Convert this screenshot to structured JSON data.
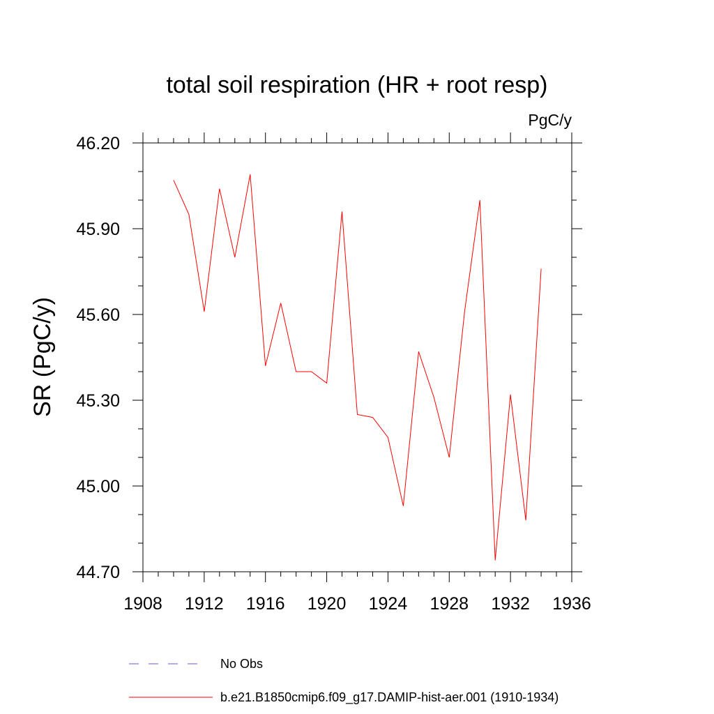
{
  "chart_data": {
    "type": "line",
    "title": "total soil respiration (HR + root resp)",
    "units_label": "PgC/y",
    "ylabel": "SR  (PgC/y)",
    "xlabel": "",
    "xlim": [
      1908,
      1936
    ],
    "ylim": [
      44.7,
      46.2
    ],
    "xticks": [
      "1908",
      "1912",
      "1916",
      "1920",
      "1924",
      "1928",
      "1932",
      "1936"
    ],
    "yticks": [
      "44.70",
      "45.00",
      "45.30",
      "45.60",
      "45.90",
      "46.20"
    ],
    "grid": false,
    "legend_position": "bottom",
    "series": [
      {
        "name": "b.e21.B1850cmip6.f09_g17.DAMIP-hist-aer.001 (1910-1934)",
        "color": "#ff0000",
        "style": "solid",
        "x": [
          1910,
          1911,
          1912,
          1913,
          1914,
          1915,
          1916,
          1917,
          1918,
          1919,
          1920,
          1921,
          1922,
          1923,
          1924,
          1925,
          1926,
          1927,
          1928,
          1929,
          1930,
          1931,
          1932,
          1933,
          1934
        ],
        "y": [
          46.07,
          45.95,
          45.61,
          46.04,
          45.8,
          46.09,
          45.42,
          45.64,
          45.4,
          45.4,
          45.36,
          45.96,
          45.25,
          45.24,
          45.17,
          44.93,
          45.47,
          45.31,
          45.1,
          45.61,
          46.0,
          44.74,
          45.32,
          44.88,
          45.76
        ]
      }
    ],
    "legend": [
      {
        "label": "No Obs",
        "color": "#6a5acd",
        "style": "dashed"
      },
      {
        "label": "b.e21.B1850cmip6.f09_g17.DAMIP-hist-aer.001 (1910-1934)",
        "color": "#ff0000",
        "style": "solid"
      }
    ]
  }
}
